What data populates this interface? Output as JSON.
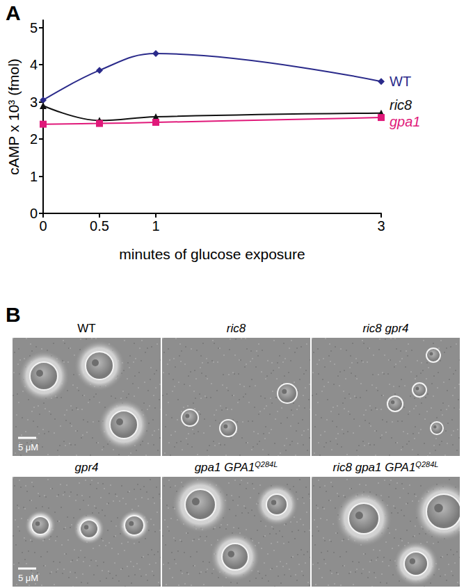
{
  "chart_data": {
    "type": "line",
    "x_label": "minutes of glucose exposure",
    "y_label": "cAMP x 10³ (fmol)",
    "x": [
      0,
      0.5,
      1,
      3
    ],
    "series": [
      {
        "name": "WT",
        "color": "#2a2a8a",
        "marker": "diamond",
        "values": [
          3.05,
          3.85,
          4.3,
          3.55
        ]
      },
      {
        "name": "ric8",
        "color": "#111111",
        "marker": "triangle",
        "values": [
          2.9,
          2.5,
          2.6,
          2.7
        ]
      },
      {
        "name": "gpa1",
        "color": "#e0197a",
        "marker": "square",
        "values": [
          2.4,
          2.42,
          2.45,
          2.58
        ]
      }
    ],
    "xlim": [
      0,
      3
    ],
    "xticks": [
      0,
      0.5,
      1,
      3
    ],
    "ylim": [
      0,
      5.2
    ],
    "yticks": [
      0,
      1,
      2,
      3,
      4,
      5
    ],
    "line_style": "smooth",
    "grid": false
  },
  "panel_a": {
    "label": "A"
  },
  "panel_b": {
    "label": "B",
    "rows": [
      {
        "scale_bar": "5 μM",
        "images": [
          {
            "title": "WT"
          },
          {
            "title": "ric8"
          },
          {
            "title": "ric8 gpr4"
          }
        ]
      },
      {
        "scale_bar": "5 μM",
        "images": [
          {
            "title": "gpr4"
          },
          {
            "title": "gpa1 GPA1",
            "title_sup": "Q284L"
          },
          {
            "title": "ric8 gpa1 GPA1",
            "title_sup": "Q284L"
          }
        ]
      }
    ]
  }
}
